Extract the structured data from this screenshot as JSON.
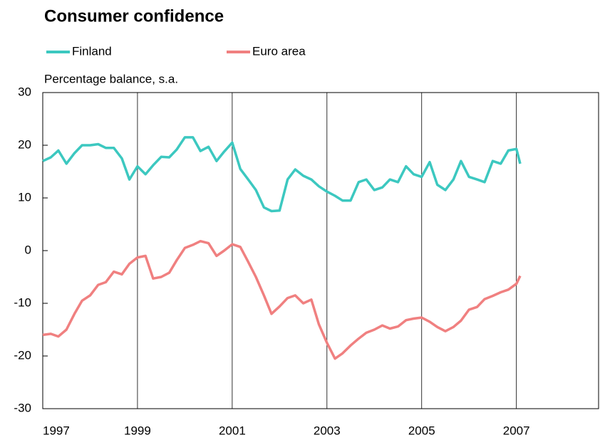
{
  "chart_data": {
    "type": "line",
    "title": "Consumer confidence",
    "y_axis_label": "Percentage balance, s.a.",
    "x": [
      1997,
      1997.17,
      1997.33,
      1997.5,
      1997.67,
      1997.83,
      1998,
      1998.17,
      1998.33,
      1998.5,
      1998.67,
      1998.83,
      1999,
      1999.17,
      1999.33,
      1999.5,
      1999.67,
      1999.83,
      2000,
      2000.17,
      2000.33,
      2000.5,
      2000.67,
      2000.83,
      2001,
      2001.17,
      2001.33,
      2001.5,
      2001.67,
      2001.83,
      2002,
      2002.17,
      2002.33,
      2002.5,
      2002.67,
      2002.83,
      2003,
      2003.17,
      2003.33,
      2003.5,
      2003.67,
      2003.83,
      2004,
      2004.17,
      2004.33,
      2004.5,
      2004.67,
      2004.83,
      2005,
      2005.17,
      2005.33,
      2005.5,
      2005.67,
      2005.83,
      2006,
      2006.17,
      2006.33,
      2006.5,
      2006.67,
      2006.83,
      2007,
      2007.08
    ],
    "series": [
      {
        "name": "Finland",
        "color": "#3cc8c0",
        "values": [
          17,
          17.7,
          19,
          16.5,
          18.5,
          20,
          20,
          20.2,
          19.5,
          19.5,
          17.5,
          13.5,
          16,
          14.5,
          16.2,
          17.8,
          17.7,
          19.2,
          21.5,
          21.5,
          18.9,
          19.7,
          17,
          18.8,
          20.5,
          15.5,
          13.6,
          11.5,
          8.2,
          7.5,
          7.6,
          13.5,
          15.4,
          14.2,
          13.5,
          12.2,
          11.2,
          10.4,
          9.5,
          9.5,
          13,
          13.5,
          11.5,
          12,
          13.5,
          13,
          16,
          14.5,
          14,
          16.8,
          12.5,
          11.5,
          13.5,
          17,
          14,
          13.5,
          13,
          17,
          16.5,
          19,
          19.3,
          16.5
        ]
      },
      {
        "name": "Euro area",
        "color": "#f08080",
        "values": [
          -16,
          -15.8,
          -16.3,
          -15,
          -12,
          -9.5,
          -8.5,
          -6.5,
          -6,
          -4,
          -4.5,
          -2.5,
          -1.3,
          -1,
          -5.3,
          -5,
          -4.2,
          -1.8,
          0.5,
          1.1,
          1.8,
          1.4,
          -1,
          0,
          1.2,
          0.7,
          -2,
          -5,
          -8.5,
          -12,
          -10.6,
          -9,
          -8.5,
          -10,
          -9.3,
          -14,
          -17.5,
          -20.5,
          -19.5,
          -18,
          -16.7,
          -15.6,
          -15,
          -14.2,
          -14.8,
          -14.4,
          -13.2,
          -12.9,
          -12.7,
          -13.5,
          -14.5,
          -15.3,
          -14.5,
          -13.3,
          -11.2,
          -10.7,
          -9.2,
          -8.6,
          -7.9,
          -7.4,
          -6.3,
          -4.8
        ]
      }
    ],
    "xlim": [
      1997,
      2008.75
    ],
    "xticks": [
      1997,
      1999,
      2001,
      2003,
      2005,
      2007
    ],
    "ylim": [
      -30,
      30
    ],
    "yticks": [
      -30,
      -20,
      -10,
      0,
      10,
      20,
      30
    ],
    "grid": true
  }
}
